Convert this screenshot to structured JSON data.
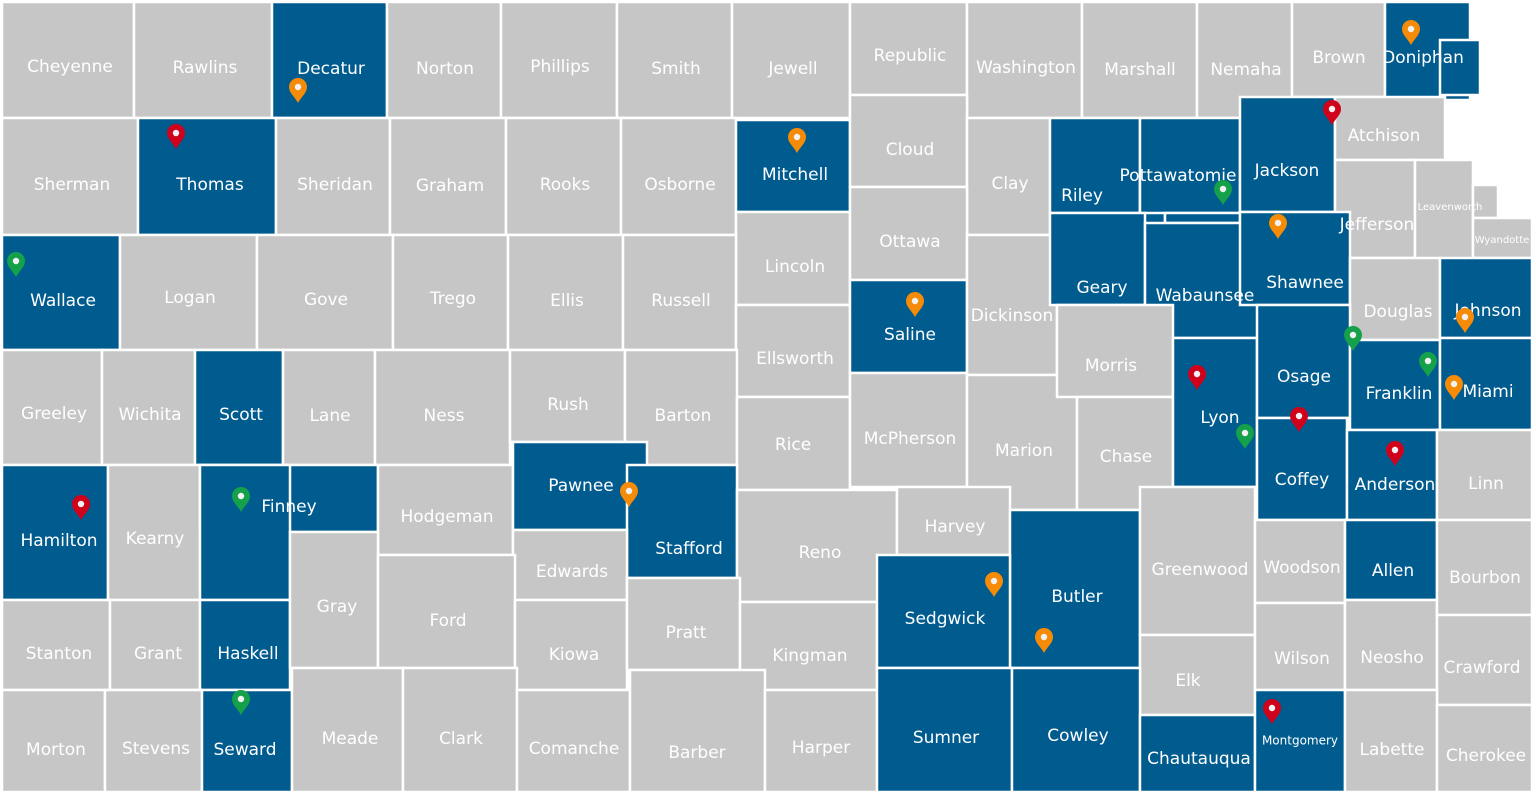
{
  "colors": {
    "highlighted": "#005b8f",
    "default": "#c6c6c6",
    "border": "#ffffff",
    "marker_red": "#d0021b",
    "marker_orange": "#f68b07",
    "marker_green": "#15a04a"
  },
  "counties": [
    {
      "name": "Cheyenne",
      "highlighted": false
    },
    {
      "name": "Rawlins",
      "highlighted": false
    },
    {
      "name": "Decatur",
      "highlighted": true
    },
    {
      "name": "Norton",
      "highlighted": false
    },
    {
      "name": "Phillips",
      "highlighted": false
    },
    {
      "name": "Smith",
      "highlighted": false
    },
    {
      "name": "Jewell",
      "highlighted": false
    },
    {
      "name": "Republic",
      "highlighted": false
    },
    {
      "name": "Washington",
      "highlighted": false
    },
    {
      "name": "Marshall",
      "highlighted": false
    },
    {
      "name": "Nemaha",
      "highlighted": false
    },
    {
      "name": "Brown",
      "highlighted": false
    },
    {
      "name": "Doniphan",
      "highlighted": true
    },
    {
      "name": "Sherman",
      "highlighted": false
    },
    {
      "name": "Thomas",
      "highlighted": true
    },
    {
      "name": "Sheridan",
      "highlighted": false
    },
    {
      "name": "Graham",
      "highlighted": false
    },
    {
      "name": "Rooks",
      "highlighted": false
    },
    {
      "name": "Osborne",
      "highlighted": false
    },
    {
      "name": "Mitchell",
      "highlighted": true
    },
    {
      "name": "Cloud",
      "highlighted": false
    },
    {
      "name": "Clay",
      "highlighted": false
    },
    {
      "name": "Riley",
      "highlighted": true
    },
    {
      "name": "Pottawatomie",
      "highlighted": true
    },
    {
      "name": "Jackson",
      "highlighted": true
    },
    {
      "name": "Atchison",
      "highlighted": false
    },
    {
      "name": "Lincoln",
      "highlighted": false
    },
    {
      "name": "Ottawa",
      "highlighted": false
    },
    {
      "name": "Jefferson",
      "highlighted": false
    },
    {
      "name": "Leavenworth",
      "highlighted": false
    },
    {
      "name": "Wyandotte",
      "highlighted": false
    },
    {
      "name": "Wallace",
      "highlighted": true
    },
    {
      "name": "Logan",
      "highlighted": false
    },
    {
      "name": "Gove",
      "highlighted": false
    },
    {
      "name": "Trego",
      "highlighted": false
    },
    {
      "name": "Ellis",
      "highlighted": false
    },
    {
      "name": "Russell",
      "highlighted": false
    },
    {
      "name": "Ellsworth",
      "highlighted": false
    },
    {
      "name": "Saline",
      "highlighted": true
    },
    {
      "name": "Dickinson",
      "highlighted": false
    },
    {
      "name": "Geary",
      "highlighted": true
    },
    {
      "name": "Wabaunsee",
      "highlighted": true
    },
    {
      "name": "Shawnee",
      "highlighted": true
    },
    {
      "name": "Douglas",
      "highlighted": false
    },
    {
      "name": "Johnson",
      "highlighted": true
    },
    {
      "name": "Greeley",
      "highlighted": false
    },
    {
      "name": "Wichita",
      "highlighted": false
    },
    {
      "name": "Scott",
      "highlighted": true
    },
    {
      "name": "Lane",
      "highlighted": false
    },
    {
      "name": "Ness",
      "highlighted": false
    },
    {
      "name": "Rush",
      "highlighted": false
    },
    {
      "name": "Barton",
      "highlighted": false
    },
    {
      "name": "Rice",
      "highlighted": false
    },
    {
      "name": "McPherson",
      "highlighted": false
    },
    {
      "name": "Marion",
      "highlighted": false
    },
    {
      "name": "Morris",
      "highlighted": false
    },
    {
      "name": "Chase",
      "highlighted": false
    },
    {
      "name": "Lyon",
      "highlighted": true
    },
    {
      "name": "Osage",
      "highlighted": true
    },
    {
      "name": "Franklin",
      "highlighted": true
    },
    {
      "name": "Miami",
      "highlighted": true
    },
    {
      "name": "Hamilton",
      "highlighted": true
    },
    {
      "name": "Kearny",
      "highlighted": false
    },
    {
      "name": "Finney",
      "highlighted": true
    },
    {
      "name": "Hodgeman",
      "highlighted": false
    },
    {
      "name": "Pawnee",
      "highlighted": true
    },
    {
      "name": "Stafford",
      "highlighted": true
    },
    {
      "name": "Edwards",
      "highlighted": false
    },
    {
      "name": "Reno",
      "highlighted": false
    },
    {
      "name": "Harvey",
      "highlighted": false
    },
    {
      "name": "Butler",
      "highlighted": true
    },
    {
      "name": "Greenwood",
      "highlighted": false
    },
    {
      "name": "Coffey",
      "highlighted": true
    },
    {
      "name": "Anderson",
      "highlighted": true
    },
    {
      "name": "Linn",
      "highlighted": false
    },
    {
      "name": "Stanton",
      "highlighted": false
    },
    {
      "name": "Grant",
      "highlighted": false
    },
    {
      "name": "Haskell",
      "highlighted": true
    },
    {
      "name": "Gray",
      "highlighted": false
    },
    {
      "name": "Ford",
      "highlighted": false
    },
    {
      "name": "Kiowa",
      "highlighted": false
    },
    {
      "name": "Pratt",
      "highlighted": false
    },
    {
      "name": "Kingman",
      "highlighted": false
    },
    {
      "name": "Sedgwick",
      "highlighted": true
    },
    {
      "name": "Elk",
      "highlighted": false
    },
    {
      "name": "Woodson",
      "highlighted": false
    },
    {
      "name": "Wilson",
      "highlighted": false
    },
    {
      "name": "Allen",
      "highlighted": true
    },
    {
      "name": "Neosho",
      "highlighted": false
    },
    {
      "name": "Bourbon",
      "highlighted": false
    },
    {
      "name": "Crawford",
      "highlighted": false
    },
    {
      "name": "Morton",
      "highlighted": false
    },
    {
      "name": "Stevens",
      "highlighted": false
    },
    {
      "name": "Seward",
      "highlighted": true
    },
    {
      "name": "Meade",
      "highlighted": false
    },
    {
      "name": "Clark",
      "highlighted": false
    },
    {
      "name": "Comanche",
      "highlighted": false
    },
    {
      "name": "Barber",
      "highlighted": false
    },
    {
      "name": "Harper",
      "highlighted": false
    },
    {
      "name": "Sumner",
      "highlighted": true
    },
    {
      "name": "Cowley",
      "highlighted": true
    },
    {
      "name": "Chautauqua",
      "highlighted": true
    },
    {
      "name": "Montgomery",
      "highlighted": true
    },
    {
      "name": "Labette",
      "highlighted": false
    },
    {
      "name": "Cherokee",
      "highlighted": false
    }
  ],
  "markers": [
    {
      "county": "Decatur",
      "color": "orange"
    },
    {
      "county": "Doniphan",
      "color": "orange"
    },
    {
      "county": "Mitchell",
      "color": "orange"
    },
    {
      "county": "Shawnee",
      "color": "orange"
    },
    {
      "county": "Saline",
      "color": "orange"
    },
    {
      "county": "Johnson",
      "color": "orange"
    },
    {
      "county": "Miami",
      "color": "orange"
    },
    {
      "county": "Pawnee",
      "color": "orange"
    },
    {
      "county": "Sedgwick",
      "color": "orange"
    },
    {
      "county": "Butler",
      "color": "orange"
    },
    {
      "county": "Thomas",
      "color": "red"
    },
    {
      "county": "Jackson",
      "color": "red"
    },
    {
      "county": "Hamilton",
      "color": "red"
    },
    {
      "county": "Lyon",
      "color": "red"
    },
    {
      "county": "Coffey",
      "color": "red"
    },
    {
      "county": "Anderson",
      "color": "red"
    },
    {
      "county": "Montgomery",
      "color": "red"
    },
    {
      "county": "Wallace",
      "color": "green"
    },
    {
      "county": "Pottawatomie",
      "color": "green"
    },
    {
      "county": "Lyon",
      "color": "green"
    },
    {
      "county": "Osage",
      "color": "green"
    },
    {
      "county": "Franklin",
      "color": "green"
    },
    {
      "county": "Finney",
      "color": "green"
    },
    {
      "county": "Seward",
      "color": "green"
    }
  ]
}
